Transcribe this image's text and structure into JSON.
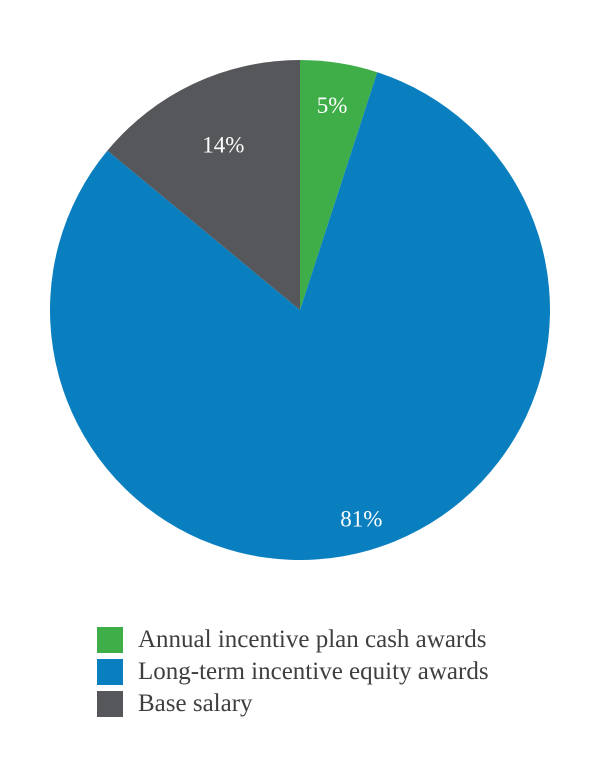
{
  "chart_data": {
    "type": "pie",
    "slices": [
      {
        "name": "Annual incentive plan cash awards",
        "value": 5,
        "label": "5%",
        "color": "#3fae49"
      },
      {
        "name": "Long-term incentive equity awards",
        "value": 81,
        "label": "81%",
        "color": "#0a7fbf"
      },
      {
        "name": "Base salary",
        "value": 14,
        "label": "14%",
        "color": "#55575a"
      }
    ],
    "start_angle": "12 o'clock",
    "direction": "clockwise",
    "legend_placement": "bottom"
  }
}
